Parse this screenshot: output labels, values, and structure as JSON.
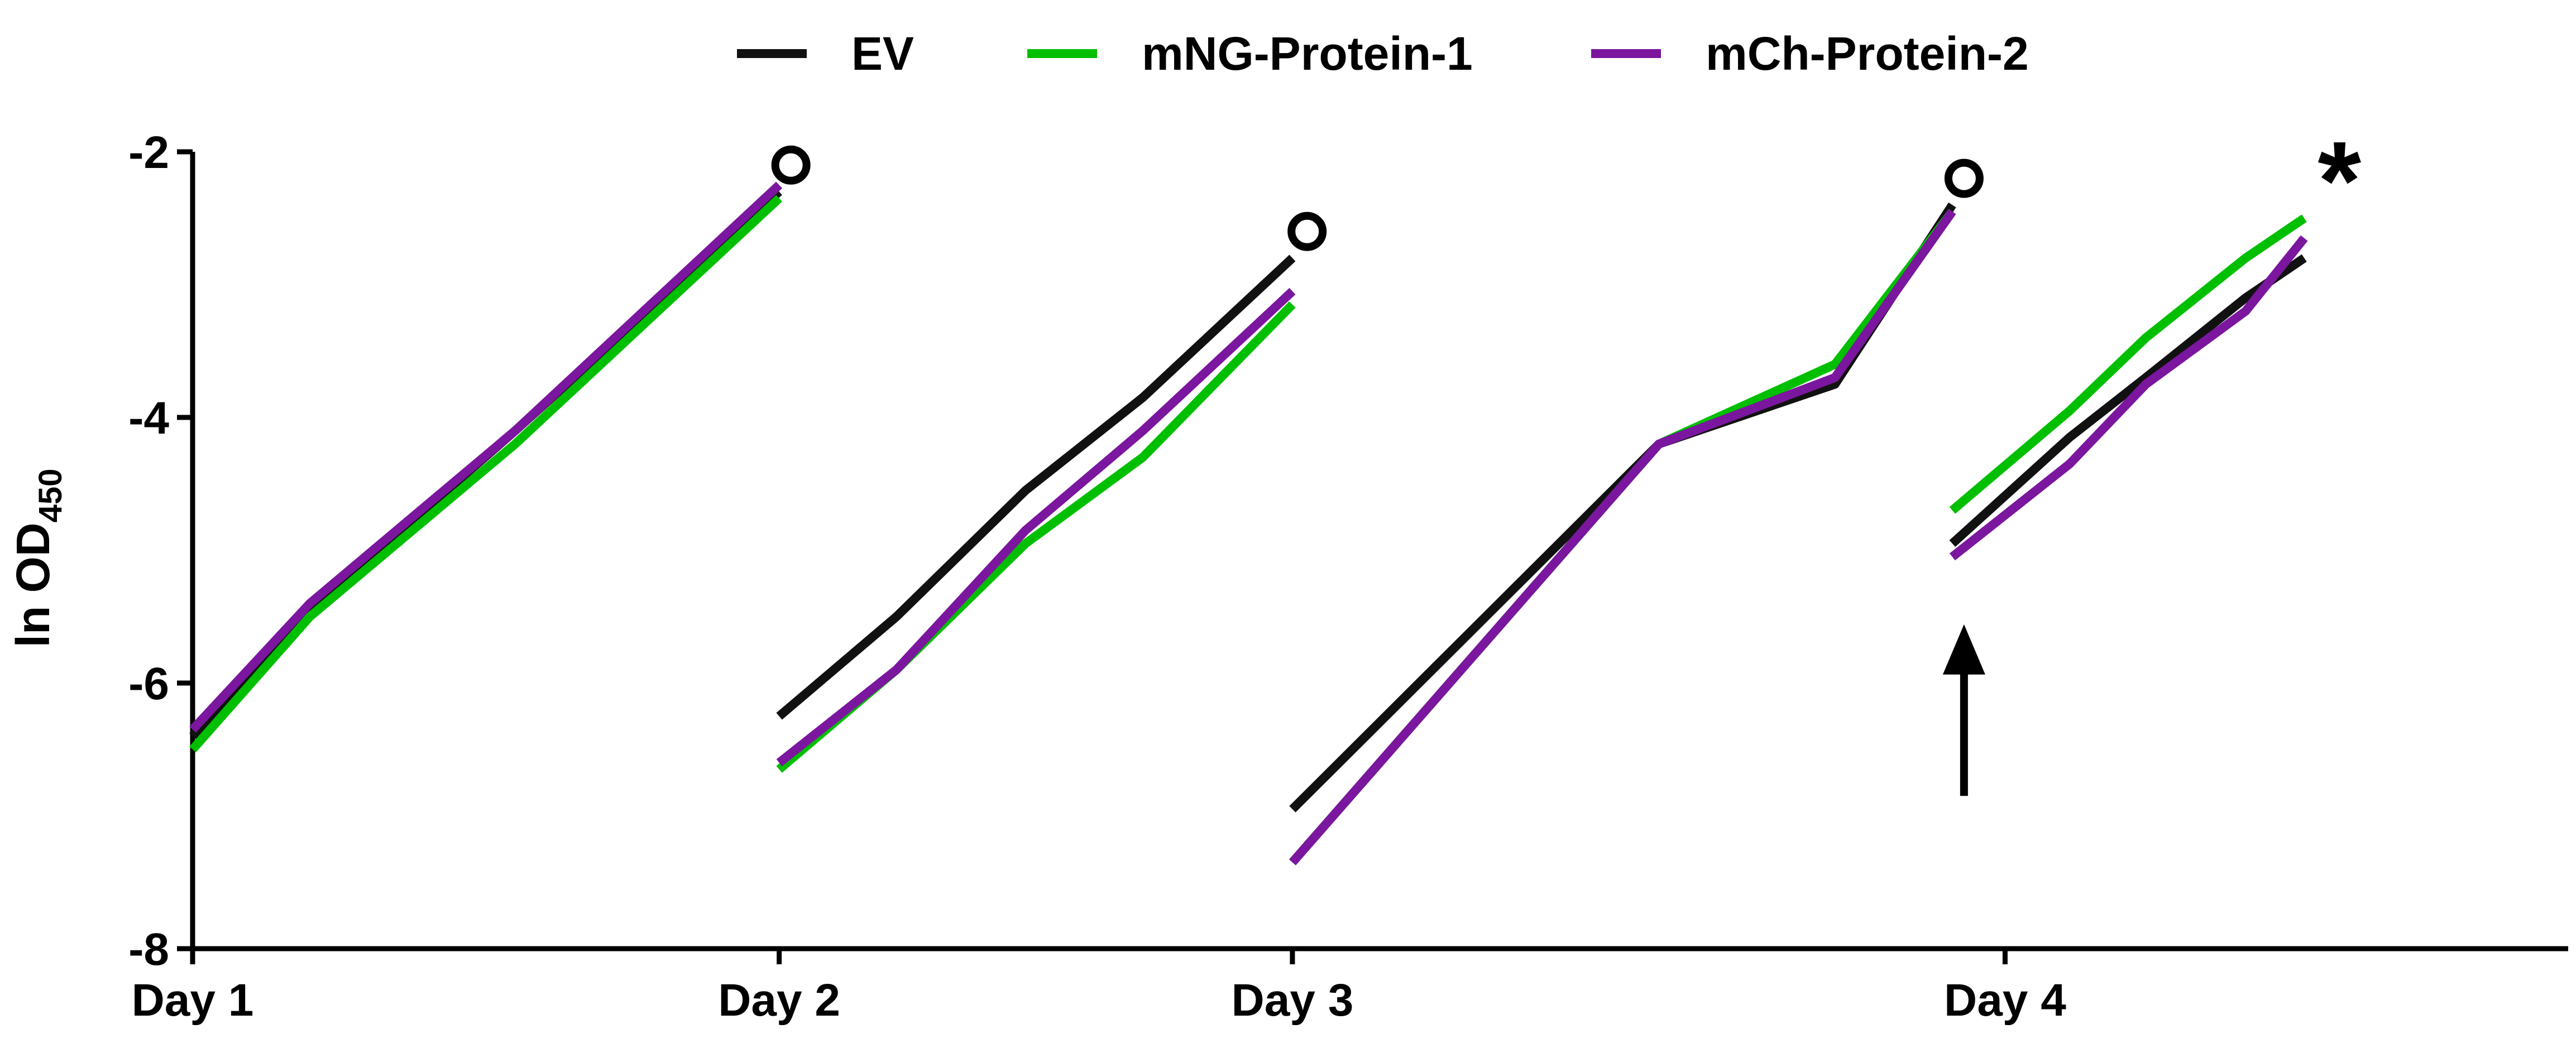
{
  "chart_data": {
    "type": "line",
    "title": "",
    "xlabel": "",
    "ylabel": {
      "main": "ln OD",
      "subscript": "450"
    },
    "x_tick_labels": [
      {
        "x": 0,
        "label": "Day 1"
      },
      {
        "x": 1,
        "label": "Day 2"
      },
      {
        "x": 1.875,
        "label": "Day 3"
      },
      {
        "x": 3.09,
        "label": "Day 4"
      }
    ],
    "xlim": [
      0,
      4.05
    ],
    "ylim": [
      -8,
      -2
    ],
    "y_ticks": [
      -2,
      -4,
      -6,
      -8
    ],
    "y_tick_labels": [
      "-2",
      "-4",
      "-6",
      "-8"
    ],
    "grid": false,
    "legend_position": "top-center",
    "series": [
      {
        "name": "EV",
        "color": "#111111",
        "segments": [
          [
            [
              0,
              -6.4
            ],
            [
              0.2,
              -5.45
            ],
            [
              0.55,
              -4.1
            ],
            [
              1,
              -2.3
            ]
          ],
          [
            [
              1,
              -6.25
            ],
            [
              1.2,
              -5.5
            ],
            [
              1.42,
              -4.55
            ],
            [
              1.62,
              -3.85
            ],
            [
              1.875,
              -2.8
            ]
          ],
          [
            [
              1.875,
              -6.95
            ],
            [
              2.5,
              -4.2
            ],
            [
              2.8,
              -3.75
            ],
            [
              3.0,
              -2.4
            ]
          ],
          [
            [
              3.0,
              -4.95
            ],
            [
              3.2,
              -4.15
            ],
            [
              3.33,
              -3.7
            ],
            [
              3.5,
              -3.1
            ],
            [
              3.6,
              -2.8
            ],
            [
              3.6,
              -2.8
            ],
            [
              3.6,
              -2.8
            ],
            [
              3.6,
              -2.8
            ]
          ]
        ]
      },
      {
        "name": "mNG-Protein-1",
        "color": "#00bf00",
        "segments": [
          [
            [
              0,
              -6.5
            ],
            [
              0.2,
              -5.5
            ],
            [
              0.55,
              -4.2
            ],
            [
              1,
              -2.35
            ]
          ],
          [
            [
              1,
              -6.65
            ],
            [
              1.2,
              -5.9
            ],
            [
              1.42,
              -4.95
            ],
            [
              1.62,
              -4.3
            ],
            [
              1.875,
              -3.15
            ]
          ],
          [
            [
              1.875,
              -7.35
            ],
            [
              2.5,
              -4.2
            ],
            [
              2.8,
              -3.6
            ],
            [
              3.0,
              -2.45
            ]
          ],
          [
            [
              3.0,
              -4.7
            ],
            [
              3.2,
              -3.95
            ],
            [
              3.33,
              -3.4
            ],
            [
              3.5,
              -2.8
            ],
            [
              3.6,
              -2.5
            ],
            [
              3.6,
              -2.5
            ],
            [
              3.6,
              -2.5
            ],
            [
              3.6,
              -2.5
            ]
          ]
        ]
      },
      {
        "name": "mCh-Protein-2",
        "color": "#7b169e",
        "segments": [
          [
            [
              0,
              -6.35
            ],
            [
              0.2,
              -5.4
            ],
            [
              0.55,
              -4.1
            ],
            [
              1,
              -2.25
            ]
          ],
          [
            [
              1,
              -6.6
            ],
            [
              1.2,
              -5.9
            ],
            [
              1.42,
              -4.85
            ],
            [
              1.62,
              -4.1
            ],
            [
              1.875,
              -3.05
            ]
          ],
          [
            [
              1.875,
              -7.35
            ],
            [
              2.5,
              -4.2
            ],
            [
              2.8,
              -3.7
            ],
            [
              3.0,
              -2.45
            ]
          ],
          [
            [
              3.0,
              -5.05
            ],
            [
              3.2,
              -4.35
            ],
            [
              3.33,
              -3.75
            ],
            [
              3.5,
              -3.2
            ],
            [
              3.6,
              -2.65
            ],
            [
              3.6,
              -2.65
            ],
            [
              3.6,
              -2.65
            ],
            [
              3.6,
              -2.65
            ]
          ]
        ]
      }
    ],
    "annotations": [
      {
        "type": "open-circle",
        "x": 1.02,
        "y": -2.1,
        "name": "day2-end-marker"
      },
      {
        "type": "open-circle",
        "x": 1.9,
        "y": -2.6,
        "name": "day3-end-marker"
      },
      {
        "type": "open-circle",
        "x": 3.02,
        "y": -2.2,
        "name": "day4-end-marker"
      },
      {
        "type": "text",
        "x": 3.66,
        "y": -2.15,
        "text": "*",
        "name": "significance-asterisk"
      },
      {
        "type": "up-arrow",
        "x": 3.02,
        "y_from": -6.85,
        "y_to": -5.6,
        "name": "treatment-arrow"
      }
    ]
  }
}
